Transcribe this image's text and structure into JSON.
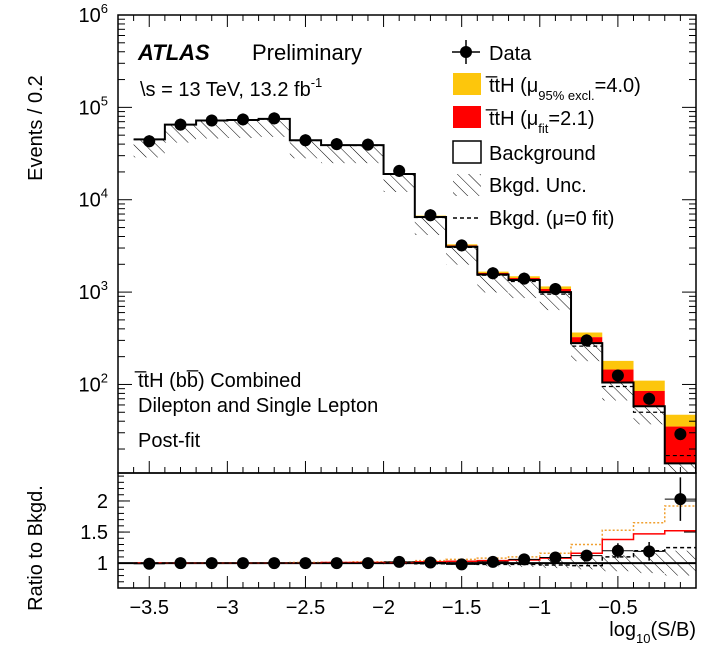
{
  "chart_data": {
    "type": "bar",
    "title": "",
    "experiment": {
      "name": "ATLAS",
      "status": "Preliminary"
    },
    "energy_label": "\\s = 13 TeV, 13.2 fb",
    "energy_sup": "-1",
    "annotation": [
      "t̅tH (bb̅) Combined",
      "Dilepton and Single Lepton",
      "Post-fit"
    ],
    "legend_placement": "top-right",
    "legend": [
      {
        "key": "data",
        "label": "Data"
      },
      {
        "key": "tth95",
        "label_prefix": "t̅tH (μ",
        "label_sub": "95% excl.",
        "label_suffix": "=4.0)",
        "color": "#fdc60c"
      },
      {
        "key": "tthfit",
        "label_prefix": "t̅tH (μ",
        "label_sub": "fit",
        "label_suffix": "=2.1)",
        "color": "#ff0000"
      },
      {
        "key": "bkg",
        "label": "Background"
      },
      {
        "key": "unc",
        "label": "Bkgd. Unc."
      },
      {
        "key": "mu0",
        "label": "Bkgd. (μ=0 fit)"
      }
    ],
    "xlabel": "log",
    "xlabel_sub": "10",
    "xlabel_suffix": "(S/B)",
    "ylabel": "Events / 0.2",
    "ratio_ylabel": "Ratio to Bkgd.",
    "xlim": [
      -3.7,
      0
    ],
    "ylim": [
      11,
      1000000
    ],
    "ylog": true,
    "ratio_ylim": [
      0.6,
      2.45
    ],
    "x_ticks": [
      -3.5,
      -3,
      -2.5,
      -2,
      -1.5,
      -1,
      -0.5
    ],
    "x_tick_labels": [
      "−3.5",
      "−3",
      "−2.5",
      "−2",
      "−1.5",
      "−1",
      "−0.5"
    ],
    "y_tick_exponents": [
      "2",
      "3",
      "4",
      "5",
      "6"
    ],
    "y_tick_base": "10",
    "ratio_ticks": [
      1,
      1.5,
      2
    ],
    "ratio_tick_labels": [
      "1",
      "1.5",
      "2"
    ],
    "bin_edges": [
      -3.6,
      -3.4,
      -3.2,
      -3.0,
      -2.8,
      -2.6,
      -2.4,
      -2.2,
      -2.0,
      -1.8,
      -1.6,
      -1.4,
      -1.2,
      -1.0,
      -0.8,
      -0.6,
      -0.4,
      -0.2,
      0.0
    ],
    "series": [
      {
        "name": "Background",
        "values": [
          45000,
          65000,
          72000,
          73000,
          75000,
          44000,
          39000,
          39000,
          19000,
          6500,
          3100,
          1550,
          1350,
          1000,
          280,
          105,
          58,
          14
        ]
      },
      {
        "name": "t̅tH (μ=2.1)",
        "values": [
          46,
          70,
          80,
          100,
          140,
          150,
          180,
          250,
          180,
          120,
          100,
          60,
          70,
          80,
          45,
          40,
          27,
          21
        ]
      },
      {
        "name": "t̅tH (μ_95% excl.=4.0)",
        "values": [
          42,
          63,
          72,
          90,
          125,
          135,
          162,
          225,
          162,
          108,
          90,
          55,
          63,
          72,
          40,
          35,
          25,
          12
        ]
      },
      {
        "name": "Data",
        "values": [
          43000,
          65000,
          72000,
          74000,
          76000,
          44000,
          40000,
          39500,
          20500,
          6800,
          3200,
          1600,
          1400,
          1080,
          300,
          125,
          70,
          29
        ]
      }
    ],
    "mu0_values": [
      44800,
      64700,
      71700,
      72600,
      74500,
      43700,
      38700,
      38600,
      18800,
      6420,
      3050,
      1520,
      1300,
      950,
      260,
      95,
      50,
      17
    ],
    "ratio": {
      "data": [
        0.99,
        1.0,
        1.0,
        1.0,
        1.0,
        1.0,
        1.0,
        1.0,
        1.02,
        1.01,
        0.98,
        1.02,
        1.06,
        1.09,
        1.12,
        1.2,
        1.19,
        2.03
      ],
      "data_err": [
        0.01,
        0.01,
        0.01,
        0.01,
        0.01,
        0.01,
        0.01,
        0.01,
        0.015,
        0.02,
        0.03,
        0.04,
        0.05,
        0.06,
        0.08,
        0.12,
        0.15,
        0.35
      ],
      "tthfit": [
        1.0,
        1.0,
        1.0,
        1.0,
        1.0,
        1.0,
        1.01,
        1.01,
        1.01,
        1.02,
        1.03,
        1.04,
        1.05,
        1.08,
        1.16,
        1.38,
        1.47,
        1.52
      ],
      "tth95": [
        1.0,
        1.0,
        1.0,
        1.0,
        1.0,
        1.01,
        1.01,
        1.02,
        1.02,
        1.04,
        1.06,
        1.08,
        1.1,
        1.16,
        1.3,
        1.53,
        1.65,
        1.92
      ],
      "mu0": [
        1.0,
        1.0,
        1.0,
        1.0,
        1.0,
        1.0,
        1.0,
        1.0,
        1.0,
        0.99,
        0.99,
        0.98,
        0.98,
        0.97,
        0.96,
        1.1,
        1.2,
        1.25
      ],
      "unc_half": [
        0.01,
        0.01,
        0.01,
        0.01,
        0.01,
        0.01,
        0.01,
        0.01,
        0.02,
        0.02,
        0.03,
        0.05,
        0.06,
        0.08,
        0.1,
        0.13,
        0.16,
        0.2
      ]
    },
    "colors": {
      "tth95": "#fdc60c",
      "tthfit": "#ff0000",
      "bkg": "#000000",
      "mu0": "#000000"
    }
  }
}
